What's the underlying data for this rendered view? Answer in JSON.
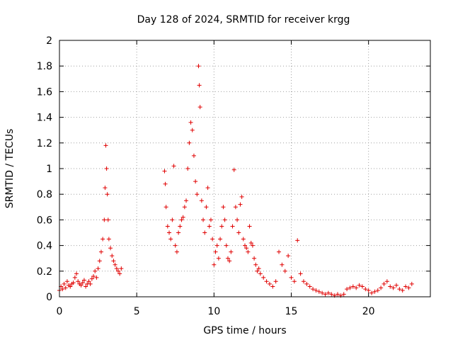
{
  "chart_data": {
    "type": "scatter",
    "title": "Day 128 of 2024, SRMTID for receiver krgg",
    "xlabel": "GPS time / hours",
    "ylabel": "SRMTID / TECUs",
    "xlim": [
      0,
      24
    ],
    "ylim": [
      0,
      2
    ],
    "xticks": [
      0,
      5,
      10,
      15,
      20
    ],
    "yticks": [
      0,
      0.2,
      0.4,
      0.6,
      0.8,
      1,
      1.2,
      1.4,
      1.6,
      1.8,
      2
    ],
    "grid": true,
    "marker": "+",
    "series": [
      {
        "name": "SRMTID",
        "color": "#e00000",
        "x": [
          0.0,
          0.1,
          0.2,
          0.3,
          0.4,
          0.5,
          0.6,
          0.7,
          0.8,
          0.9,
          1.0,
          1.1,
          1.2,
          1.3,
          1.4,
          1.5,
          1.6,
          1.7,
          1.8,
          1.9,
          2.0,
          2.1,
          2.2,
          2.3,
          2.4,
          2.5,
          2.6,
          2.7,
          2.8,
          2.9,
          2.95,
          3.0,
          3.05,
          3.1,
          3.15,
          3.2,
          3.3,
          3.4,
          3.5,
          3.6,
          3.7,
          3.8,
          3.9,
          4.0,
          6.8,
          6.85,
          6.9,
          7.0,
          7.1,
          7.2,
          7.3,
          7.4,
          7.5,
          7.6,
          7.7,
          7.8,
          7.9,
          8.0,
          8.1,
          8.2,
          8.3,
          8.4,
          8.5,
          8.6,
          8.7,
          8.8,
          8.9,
          9.0,
          9.05,
          9.1,
          9.2,
          9.3,
          9.4,
          9.5,
          9.6,
          9.7,
          9.8,
          9.9,
          10.0,
          10.1,
          10.2,
          10.3,
          10.4,
          10.5,
          10.6,
          10.7,
          10.8,
          10.9,
          11.0,
          11.1,
          11.2,
          11.3,
          11.4,
          11.5,
          11.6,
          11.7,
          11.8,
          11.9,
          12.0,
          12.1,
          12.2,
          12.3,
          12.4,
          12.5,
          12.6,
          12.7,
          12.8,
          12.9,
          13.0,
          13.2,
          13.4,
          13.6,
          13.8,
          14.0,
          14.2,
          14.4,
          14.6,
          14.8,
          15.0,
          15.2,
          15.4,
          15.6,
          15.8,
          16.0,
          16.2,
          16.4,
          16.6,
          16.8,
          17.0,
          17.2,
          17.4,
          17.6,
          17.8,
          18.0,
          18.2,
          18.4,
          18.6,
          18.8,
          19.0,
          19.2,
          19.4,
          19.6,
          19.8,
          20.0,
          20.2,
          20.4,
          20.6,
          20.8,
          21.0,
          21.2,
          21.4,
          21.6,
          21.8,
          22.0,
          22.2,
          22.4,
          22.6,
          22.8
        ],
        "y": [
          0.05,
          0.08,
          0.06,
          0.1,
          0.07,
          0.12,
          0.09,
          0.08,
          0.1,
          0.11,
          0.15,
          0.18,
          0.12,
          0.1,
          0.09,
          0.11,
          0.13,
          0.08,
          0.1,
          0.12,
          0.1,
          0.14,
          0.16,
          0.2,
          0.15,
          0.22,
          0.28,
          0.35,
          0.45,
          0.6,
          0.85,
          1.18,
          1.0,
          0.8,
          0.6,
          0.45,
          0.38,
          0.32,
          0.28,
          0.25,
          0.22,
          0.2,
          0.18,
          0.22,
          0.98,
          0.88,
          0.7,
          0.55,
          0.5,
          0.45,
          0.6,
          1.02,
          0.4,
          0.35,
          0.5,
          0.55,
          0.6,
          0.62,
          0.7,
          0.75,
          1.0,
          1.2,
          1.36,
          1.3,
          1.1,
          0.9,
          0.8,
          1.8,
          1.65,
          1.48,
          0.75,
          0.6,
          0.5,
          0.7,
          0.85,
          0.55,
          0.6,
          0.45,
          0.25,
          0.35,
          0.4,
          0.3,
          0.45,
          0.55,
          0.7,
          0.6,
          0.4,
          0.3,
          0.28,
          0.35,
          0.55,
          0.99,
          0.7,
          0.6,
          0.5,
          0.72,
          0.78,
          0.45,
          0.4,
          0.38,
          0.35,
          0.55,
          0.42,
          0.4,
          0.3,
          0.25,
          0.2,
          0.22,
          0.18,
          0.15,
          0.12,
          0.1,
          0.08,
          0.12,
          0.35,
          0.25,
          0.2,
          0.32,
          0.15,
          0.12,
          0.44,
          0.18,
          0.12,
          0.1,
          0.08,
          0.06,
          0.05,
          0.04,
          0.03,
          0.02,
          0.03,
          0.02,
          0.01,
          0.02,
          0.01,
          0.02,
          0.06,
          0.07,
          0.08,
          0.07,
          0.09,
          0.08,
          0.06,
          0.05,
          0.03,
          0.04,
          0.05,
          0.07,
          0.1,
          0.12,
          0.08,
          0.07,
          0.09,
          0.06,
          0.05,
          0.08,
          0.07,
          0.1
        ]
      }
    ]
  }
}
